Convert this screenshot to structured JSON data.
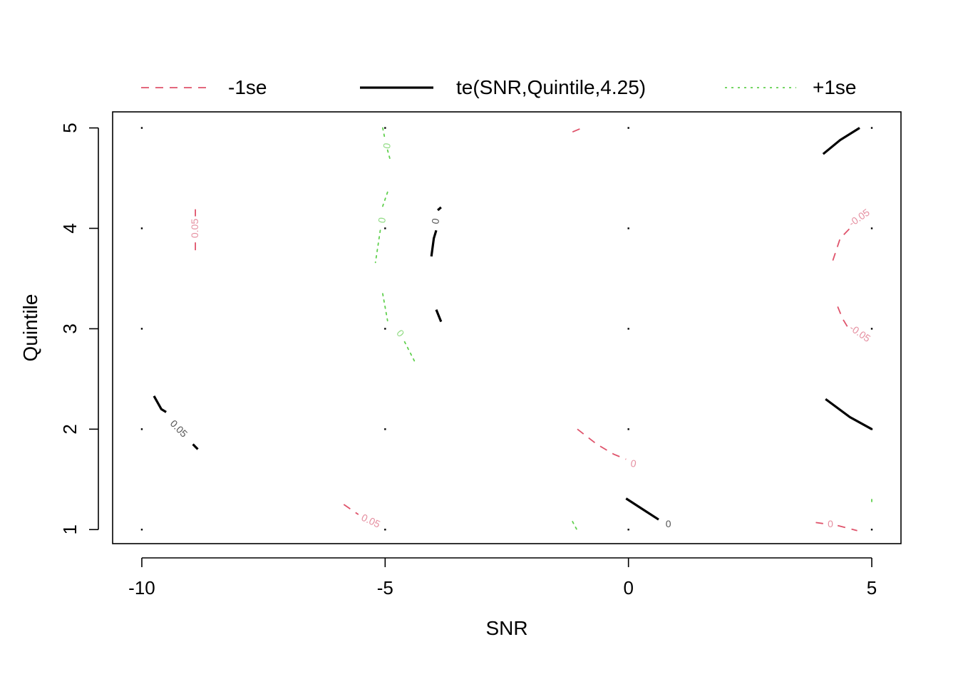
{
  "chart_data": {
    "type": "contour",
    "title": "",
    "xlabel": "SNR",
    "ylabel": "Quintile",
    "xlim": [
      -10.6,
      5.6
    ],
    "ylim": [
      0.86,
      5.16
    ],
    "xticks": [
      -10,
      -5,
      0,
      5
    ],
    "xtick_labels": [
      "-10",
      "-5",
      "0",
      "5"
    ],
    "yticks": [
      1,
      2,
      3,
      4,
      5
    ],
    "ytick_labels": [
      "1",
      "2",
      "3",
      "4",
      "5"
    ],
    "grid_points": {
      "x": [
        -10,
        -5,
        0,
        5
      ],
      "y": [
        1,
        2,
        3,
        4,
        5
      ]
    },
    "legend": {
      "placement": "top",
      "entries": [
        {
          "label": "-1se",
          "color": "#DF536B",
          "style": "dashed"
        },
        {
          "label": "te(SNR,Quintile,4.25)",
          "color": "#000000",
          "style": "solid"
        },
        {
          "label": "+1se",
          "color": "#61D04F",
          "style": "dotted"
        }
      ]
    },
    "series": [
      {
        "key": "minus",
        "color": "#DF536B",
        "label_color": "#E58FA0",
        "style": "dashed",
        "lines": [
          {
            "points": [
              [
                -8.9,
                4.19
              ],
              [
                -8.9,
                4.12
              ]
            ]
          },
          {
            "points": [
              [
                -8.9,
                3.86
              ],
              [
                -8.9,
                3.76
              ]
            ]
          },
          {
            "points": [
              [
                -1.15,
                4.96
              ],
              [
                -0.95,
                5.0
              ]
            ]
          },
          {
            "points": [
              [
                -1.05,
                2.0
              ],
              [
                -0.65,
                1.85
              ],
              [
                -0.3,
                1.75
              ],
              [
                -0.05,
                1.7
              ]
            ]
          },
          {
            "points": [
              [
                -5.85,
                1.25
              ],
              [
                -5.55,
                1.15
              ]
            ]
          },
          {
            "points": [
              [
                3.85,
                1.07
              ],
              [
                4.0,
                1.06
              ]
            ]
          },
          {
            "points": [
              [
                4.3,
                1.04
              ],
              [
                4.7,
                0.99
              ]
            ]
          },
          {
            "points": [
              [
                4.2,
                3.68
              ],
              [
                4.35,
                3.9
              ],
              [
                4.55,
                4.0
              ]
            ]
          },
          {
            "points": [
              [
                4.3,
                3.22
              ],
              [
                4.4,
                3.1
              ],
              [
                4.5,
                3.02
              ]
            ]
          }
        ],
        "labels": [
          {
            "text": "0.05",
            "x": -8.9,
            "y": 4.0,
            "angle": -90
          },
          {
            "text": "0",
            "x": 0.1,
            "y": 1.65,
            "angle": 10
          },
          {
            "text": "0.05",
            "x": -5.3,
            "y": 1.08,
            "angle": 25
          },
          {
            "text": "0",
            "x": 4.15,
            "y": 1.05,
            "angle": 0
          },
          {
            "text": "-0.05",
            "x": 4.75,
            "y": 4.1,
            "angle": -35
          },
          {
            "text": "-0.05",
            "x": 4.75,
            "y": 2.95,
            "angle": 35
          }
        ]
      },
      {
        "key": "fit",
        "color": "#000000",
        "label_color": "#555555",
        "style": "solid",
        "lines": [
          {
            "points": [
              [
                -9.75,
                2.33
              ],
              [
                -9.6,
                2.2
              ],
              [
                -9.5,
                2.17
              ]
            ]
          },
          {
            "points": [
              [
                -8.95,
                1.85
              ],
              [
                -8.85,
                1.8
              ]
            ]
          },
          {
            "points": [
              [
                -4.05,
                3.72
              ],
              [
                -4.0,
                3.9
              ],
              [
                -3.95,
                3.98
              ]
            ]
          },
          {
            "points": [
              [
                -3.92,
                4.18
              ],
              [
                -3.85,
                4.21
              ]
            ]
          },
          {
            "points": [
              [
                -3.95,
                3.19
              ],
              [
                -3.85,
                3.07
              ]
            ]
          },
          {
            "points": [
              [
                -0.05,
                1.31
              ],
              [
                0.3,
                1.2
              ],
              [
                0.62,
                1.1
              ]
            ]
          },
          {
            "points": [
              [
                4.0,
                4.74
              ],
              [
                4.35,
                4.88
              ],
              [
                4.75,
                5.0
              ]
            ]
          },
          {
            "points": [
              [
                4.05,
                2.3
              ],
              [
                4.55,
                2.12
              ],
              [
                5.0,
                2.0
              ]
            ]
          }
        ],
        "labels": [
          {
            "text": "0.05",
            "x": -9.25,
            "y": 2.0,
            "angle": 45
          },
          {
            "text": "0",
            "x": -3.95,
            "y": 4.07,
            "angle": -80
          },
          {
            "text": "0",
            "x": 0.82,
            "y": 1.05,
            "angle": 0
          }
        ]
      },
      {
        "key": "plus",
        "color": "#61D04F",
        "label_color": "#8FDB82",
        "style": "dotted",
        "lines": [
          {
            "points": [
              [
                -5.05,
                5.0
              ],
              [
                -5.0,
                4.88
              ]
            ]
          },
          {
            "points": [
              [
                -4.95,
                4.78
              ],
              [
                -4.9,
                4.69
              ]
            ]
          },
          {
            "points": [
              [
                -4.95,
                4.36
              ],
              [
                -5.05,
                4.22
              ]
            ]
          },
          {
            "points": [
              [
                -5.1,
                3.98
              ],
              [
                -5.2,
                3.66
              ]
            ]
          },
          {
            "points": [
              [
                -5.05,
                3.35
              ],
              [
                -4.95,
                3.08
              ]
            ]
          },
          {
            "points": [
              [
                -4.6,
                2.87
              ],
              [
                -4.4,
                2.68
              ]
            ]
          },
          {
            "points": [
              [
                -1.15,
                1.08
              ],
              [
                -1.05,
                0.99
              ]
            ]
          },
          {
            "points": [
              [
                5.0,
                1.3
              ],
              [
                5.0,
                1.27
              ]
            ]
          }
        ],
        "labels": [
          {
            "text": "0",
            "x": -4.95,
            "y": 4.82,
            "angle": -80
          },
          {
            "text": "0",
            "x": -5.05,
            "y": 4.08,
            "angle": -80
          },
          {
            "text": "0",
            "x": -4.7,
            "y": 2.95,
            "angle": 50
          }
        ]
      }
    ]
  }
}
